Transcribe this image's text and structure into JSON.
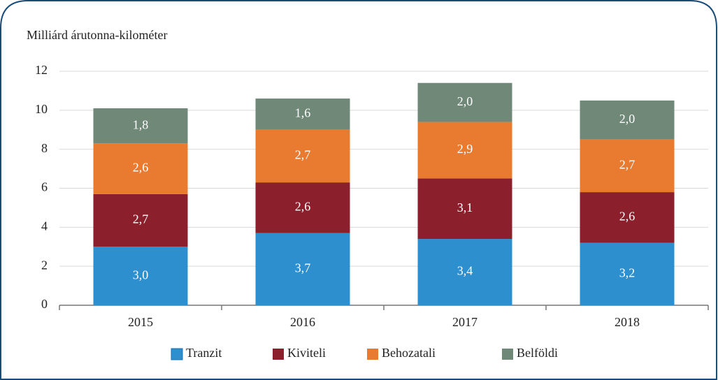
{
  "chart_data": {
    "type": "stacked_bar",
    "y_axis_label": "Milliárd árutonna-kilométer",
    "categories": [
      "2015",
      "2016",
      "2017",
      "2018"
    ],
    "series": [
      {
        "name": "Tranzit",
        "color": "#2e8fcf",
        "values": [
          3.0,
          3.7,
          3.4,
          3.2
        ],
        "value_labels": [
          "3,0",
          "3,7",
          "3,4",
          "3,2"
        ]
      },
      {
        "name": "Kiviteli",
        "color": "#8b1f2c",
        "values": [
          2.7,
          2.6,
          3.1,
          2.6
        ],
        "value_labels": [
          "2,7",
          "2,6",
          "3,1",
          "2,6"
        ]
      },
      {
        "name": "Behozatali",
        "color": "#e97b30",
        "values": [
          2.6,
          2.7,
          2.9,
          2.7
        ],
        "value_labels": [
          "2,6",
          "2,7",
          "2,9",
          "2,7"
        ]
      },
      {
        "name": "Belföldi",
        "color": "#6f8878",
        "values": [
          1.8,
          1.6,
          2.0,
          2.0
        ],
        "value_labels": [
          "1,8",
          "1,6",
          "2,0",
          "2,0"
        ]
      }
    ],
    "ylim": [
      0,
      12
    ],
    "yticks": [
      0,
      2,
      4,
      6,
      8,
      10,
      12
    ],
    "grid": true,
    "legend": "bottom"
  }
}
